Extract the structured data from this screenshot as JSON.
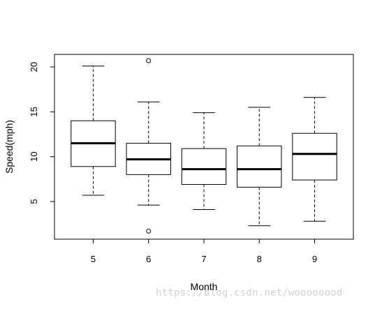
{
  "chart_data": {
    "type": "box",
    "xlabel": "Month",
    "ylabel": "Speed(mph)",
    "categories": [
      "5",
      "6",
      "7",
      "8",
      "9"
    ],
    "boxes": [
      {
        "category": "5",
        "whisker_low": 5.7,
        "q1": 8.9,
        "median": 11.5,
        "q3": 14.0,
        "whisker_high": 20.1,
        "outliers": []
      },
      {
        "category": "6",
        "whisker_low": 4.6,
        "q1": 8.0,
        "median": 9.7,
        "q3": 11.5,
        "whisker_high": 16.1,
        "outliers": [
          1.7,
          20.7
        ]
      },
      {
        "category": "7",
        "whisker_low": 4.1,
        "q1": 6.9,
        "median": 8.6,
        "q3": 10.9,
        "whisker_high": 14.9,
        "outliers": []
      },
      {
        "category": "8",
        "whisker_low": 2.3,
        "q1": 6.6,
        "median": 8.6,
        "q3": 11.2,
        "whisker_high": 15.5,
        "outliers": []
      },
      {
        "category": "9",
        "whisker_low": 2.8,
        "q1": 7.4,
        "median": 10.3,
        "q3": 12.6,
        "whisker_high": 16.6,
        "outliers": []
      }
    ],
    "yticks": [
      5,
      10,
      15,
      20
    ],
    "ylim": [
      0.8,
      21.4
    ],
    "grid": false
  },
  "watermark": "https://blog.csdn.net/woooooood"
}
